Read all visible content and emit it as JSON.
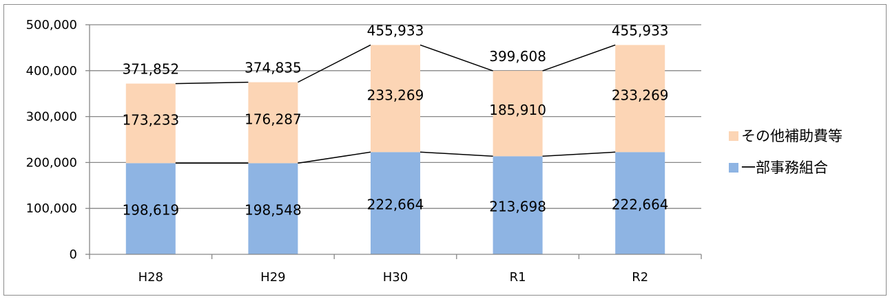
{
  "chart_data": {
    "type": "bar",
    "stacked": true,
    "categories": [
      "H28",
      "H29",
      "H30",
      "R1",
      "R2"
    ],
    "series": [
      {
        "name": "一部事務組合",
        "values": [
          198619,
          198548,
          222664,
          213698,
          222664
        ],
        "color": "#8eb4e3"
      },
      {
        "name": "その他補助費等",
        "values": [
          173233,
          176287,
          233269,
          185910,
          233269
        ],
        "color": "#fcd5b5"
      }
    ],
    "totals": [
      371852,
      374835,
      455933,
      399608,
      455933
    ],
    "value_labels": [
      [
        "198,619",
        "198,548",
        "222,664",
        "213,698",
        "222,664"
      ],
      [
        "173,233",
        "176,287",
        "233,269",
        "185,910",
        "233,269"
      ]
    ],
    "total_labels": [
      "371,852",
      "374,835",
      "455,933",
      "399,608",
      "455,933"
    ],
    "ylim": [
      0,
      500000
    ],
    "yticks": [
      0,
      100000,
      200000,
      300000,
      400000,
      500000
    ],
    "ytick_labels": [
      "0",
      "100,000",
      "200,000",
      "300,000",
      "400,000",
      "500,000"
    ],
    "series_lines": true,
    "grid": true,
    "legend_position": "right",
    "gridline_color": "#868686",
    "line_color": "#000000"
  }
}
